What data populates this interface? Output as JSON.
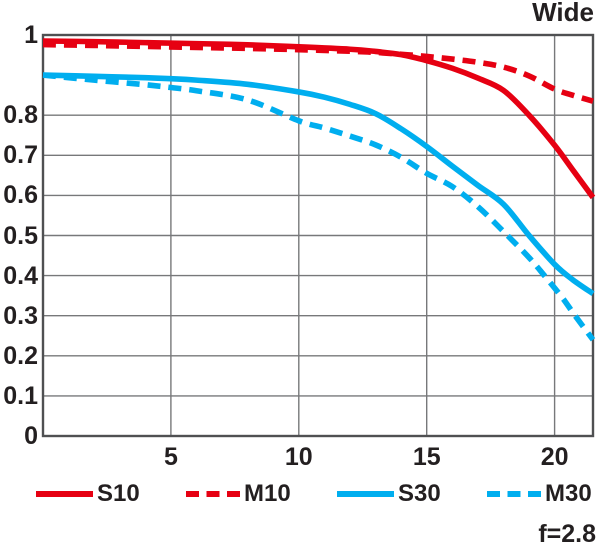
{
  "title": "Wide",
  "footnote": "f=2.8",
  "colors": {
    "red_series": "#e60012",
    "cyan_series": "#00aeef",
    "grid": "#77787a",
    "border": "#4f5052",
    "text": "#231f20",
    "background": "#ffffff"
  },
  "chart_data": {
    "type": "line",
    "title": "Wide",
    "annotation": "f=2.8",
    "xlabel": "",
    "ylabel": "",
    "xlim": [
      0,
      21.5
    ],
    "ylim": [
      0,
      1
    ],
    "grid": true,
    "legend_position": "bottom",
    "xticks": [
      {
        "v": 5,
        "label": "5"
      },
      {
        "v": 10,
        "label": "10"
      },
      {
        "v": 15,
        "label": "15"
      },
      {
        "v": 20,
        "label": "20"
      }
    ],
    "yticks": [
      {
        "v": 0,
        "label": "0"
      },
      {
        "v": 0.1,
        "label": "0.1"
      },
      {
        "v": 0.2,
        "label": "0.2"
      },
      {
        "v": 0.3,
        "label": "0.3"
      },
      {
        "v": 0.4,
        "label": "0.4"
      },
      {
        "v": 0.5,
        "label": "0.5"
      },
      {
        "v": 0.6,
        "label": "0.6"
      },
      {
        "v": 0.7,
        "label": "0.7"
      },
      {
        "v": 0.8,
        "label": "0.8"
      },
      {
        "v": 1,
        "label": "1"
      }
    ],
    "series": [
      {
        "name": "S10",
        "color": "#e60012",
        "dash": false,
        "points": [
          [
            0,
            0.985
          ],
          [
            2,
            0.9835
          ],
          [
            4,
            0.981
          ],
          [
            6,
            0.9785
          ],
          [
            8,
            0.9755
          ],
          [
            10,
            0.9705
          ],
          [
            12,
            0.9645
          ],
          [
            13,
            0.959
          ],
          [
            14,
            0.951
          ],
          [
            15,
            0.936
          ],
          [
            16,
            0.917
          ],
          [
            17,
            0.8925
          ],
          [
            18,
            0.862
          ],
          [
            19,
            0.8
          ],
          [
            20,
            0.725
          ],
          [
            20.75,
            0.66
          ],
          [
            21.5,
            0.595
          ]
        ]
      },
      {
        "name": "M10",
        "color": "#e60012",
        "dash": true,
        "points": [
          [
            0,
            0.976
          ],
          [
            2,
            0.974
          ],
          [
            4,
            0.9715
          ],
          [
            6,
            0.969
          ],
          [
            8,
            0.9665
          ],
          [
            10,
            0.9635
          ],
          [
            12,
            0.9595
          ],
          [
            13,
            0.9565
          ],
          [
            14,
            0.952
          ],
          [
            15,
            0.9465
          ],
          [
            16,
            0.94
          ],
          [
            17,
            0.932
          ],
          [
            18,
            0.92
          ],
          [
            19,
            0.898
          ],
          [
            20,
            0.865
          ],
          [
            20.75,
            0.849
          ],
          [
            21.5,
            0.835
          ]
        ]
      },
      {
        "name": "S30",
        "color": "#00aeef",
        "dash": false,
        "points": [
          [
            0,
            0.9
          ],
          [
            2,
            0.897
          ],
          [
            4,
            0.8935
          ],
          [
            5,
            0.891
          ],
          [
            6,
            0.8875
          ],
          [
            8,
            0.877
          ],
          [
            10,
            0.858
          ],
          [
            11,
            0.845
          ],
          [
            12,
            0.827
          ],
          [
            13,
            0.804
          ],
          [
            14,
            0.766
          ],
          [
            15,
            0.722
          ],
          [
            16,
            0.673
          ],
          [
            17,
            0.625
          ],
          [
            18,
            0.578
          ],
          [
            19,
            0.5
          ],
          [
            20,
            0.428
          ],
          [
            20.7,
            0.39
          ],
          [
            21.5,
            0.355
          ]
        ]
      },
      {
        "name": "M30",
        "color": "#00aeef",
        "dash": true,
        "points": [
          [
            0,
            0.9
          ],
          [
            2,
            0.8875
          ],
          [
            4,
            0.876
          ],
          [
            5,
            0.869
          ],
          [
            6,
            0.861
          ],
          [
            8,
            0.838
          ],
          [
            10,
            0.786
          ],
          [
            11,
            0.768
          ],
          [
            12,
            0.748
          ],
          [
            13,
            0.726
          ],
          [
            14,
            0.695
          ],
          [
            15,
            0.655
          ],
          [
            16,
            0.622
          ],
          [
            17,
            0.572
          ],
          [
            18,
            0.51
          ],
          [
            19,
            0.445
          ],
          [
            19.6,
            0.4
          ],
          [
            20.3,
            0.345
          ],
          [
            20.8,
            0.3
          ],
          [
            21.5,
            0.24
          ]
        ]
      }
    ]
  },
  "legend": {
    "items": [
      {
        "label": "S10",
        "color": "#e60012",
        "dash": false
      },
      {
        "label": "M10",
        "color": "#e60012",
        "dash": true
      },
      {
        "label": "S30",
        "color": "#00aeef",
        "dash": false
      },
      {
        "label": "M30",
        "color": "#00aeef",
        "dash": true
      }
    ]
  }
}
